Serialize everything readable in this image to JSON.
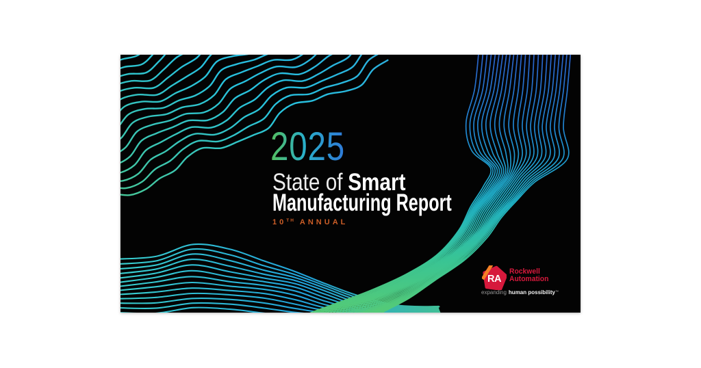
{
  "cover": {
    "year": "2025",
    "title": {
      "regular": "State of",
      "bold": "Smart",
      "line2": "Manufacturing Report"
    },
    "edition": {
      "number": "10",
      "suffix": "TH",
      "label": "ANNUAL"
    },
    "logo": {
      "monogram": "RA",
      "name_line1": "Rockwell",
      "name_line2": "Automation",
      "tagline_regular": "expanding",
      "tagline_bold": "human possibility",
      "trademark": "™"
    }
  },
  "colors": {
    "page_background": "#ffffff",
    "card_background": "#030303",
    "title_text": "#ffffff",
    "edition_orange": "#cc5e27",
    "rockwell_red": "#d6193c",
    "rockwell_orange": "#f58025",
    "monogram_white": "#ffffff",
    "tagline_gray": "#969696",
    "tagline_white": "#f2f2f2",
    "year_gradient": [
      "#55bf5e",
      "#2ab0c8",
      "#2e7ad8"
    ],
    "wave_topleft": [
      "#4cc98c",
      "#27c2de",
      "#2f9bdc"
    ],
    "wave_bottomleft": [
      "#3ad2cf",
      "#21a2da",
      "#46c48b"
    ],
    "wave_right": [
      "#2a5ec8",
      "#1f86cf",
      "#1fb3c9",
      "#38c495",
      "#5ecd6d"
    ]
  }
}
